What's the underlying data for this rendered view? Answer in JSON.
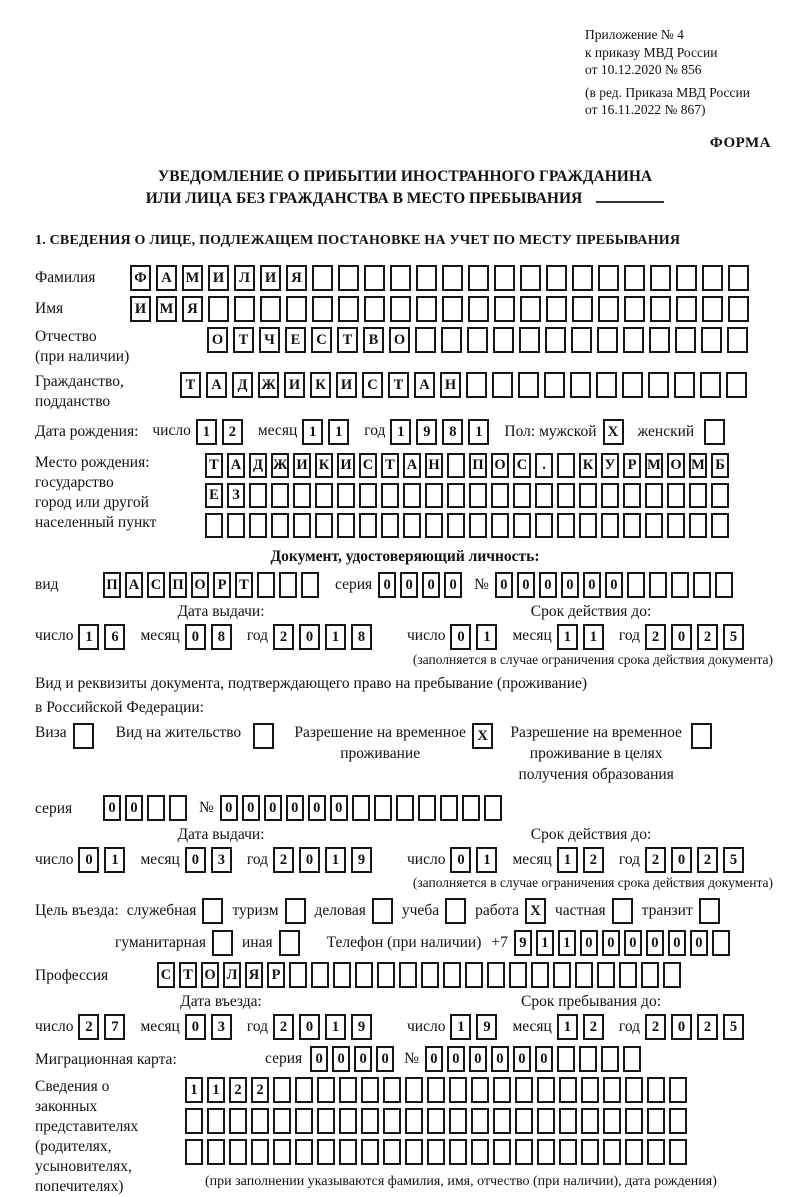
{
  "page": {
    "annex_lines": [
      "Приложение № 4",
      "к приказу МВД России",
      "от 10.12.2020 № 856"
    ],
    "annex_edit_lines": [
      "(в ред. Приказа МВД России",
      "от 16.11.2022 № 867)"
    ],
    "forma_label": "ФОРМА",
    "title_line1": "УВЕДОМЛЕНИЕ О ПРИБЫТИИ ИНОСТРАННОГО ГРАЖДАНИНА",
    "title_line2": "ИЛИ ЛИЦА БЕЗ ГРАЖДАНСТВА В МЕСТО ПРЕБЫВАНИЯ",
    "section1_heading": "1. СВЕДЕНИЯ О ЛИЦЕ, ПОДЛЕЖАЩЕМ ПОСТАНОВКЕ НА УЧЕТ ПО МЕСТУ ПРЕБЫВАНИЯ"
  },
  "labels": {
    "day": "число",
    "month": "месяц",
    "year": "год",
    "issue_date": "Дата выдачи:",
    "valid_until": "Срок действия до:",
    "entry_date": "Дата въезда:",
    "stay_until": "Срок пребывания до:",
    "series": "серия",
    "number": "№",
    "limit_note": "(заполняется в случае ограничения срока действия документа)"
  },
  "person": {
    "surname": {
      "label": "Фамилия",
      "boxes": {
        "chars": "ФАМИЛИЯ",
        "total": 24
      }
    },
    "given_name": {
      "label": "Имя",
      "boxes": {
        "chars": "ИМЯ",
        "total": 24
      }
    },
    "patronymic": {
      "label": "Отчество",
      "label2": "(при наличии)",
      "boxes": {
        "chars": "ОТЧЕСТВО",
        "total": 21
      }
    },
    "citizenship": {
      "label": "Гражданство,",
      "label2": "подданство",
      "boxes": {
        "chars": "ТАДЖИКИСТАН",
        "total": 22
      }
    },
    "birth_date": {
      "label": "Дата рождения:",
      "day": {
        "chars": "12",
        "total": 2
      },
      "month": {
        "chars": "11",
        "total": 2
      },
      "year": {
        "chars": "1981",
        "total": 4
      }
    },
    "sex": {
      "male_label": "Пол: мужской",
      "male": "X",
      "female_label": "женский",
      "female": ""
    },
    "birth_place": {
      "label_lines": [
        "Место рождения:",
        "государство",
        "город или другой",
        "населенный пункт"
      ],
      "row1": {
        "chars": "ТАДЖИКИСТАН ПОС. КУРМОМБ",
        "total": 24
      },
      "row2": {
        "chars": "ЕЗ",
        "total": 24
      },
      "row3": {
        "chars": "",
        "total": 24
      }
    }
  },
  "identity_doc": {
    "heading": "Документ, удостоверяющий личность:",
    "kind_label": "вид",
    "kind": {
      "chars": "ПАСПОРТ",
      "total": 10
    },
    "series": {
      "chars": "0000",
      "total": 4
    },
    "number": {
      "chars": "000000",
      "total": 11
    },
    "issue": {
      "day": {
        "chars": "16",
        "total": 2
      },
      "month": {
        "chars": "08",
        "total": 2
      },
      "year": {
        "chars": "2018",
        "total": 4
      }
    },
    "until": {
      "day": {
        "chars": "01",
        "total": 2
      },
      "month": {
        "chars": "11",
        "total": 2
      },
      "year": {
        "chars": "2025",
        "total": 4
      }
    }
  },
  "stay_doc": {
    "intro_line1": "Вид и реквизиты документа, подтверждающего право на пребывание (проживание)",
    "intro_line2": "в Российской Федерации:",
    "options": [
      {
        "label": "Виза",
        "value": ""
      },
      {
        "label": "Вид на жительство",
        "value": ""
      },
      {
        "label": "Разрешение на временное проживание",
        "value": "X"
      },
      {
        "label": "Разрешение на временное проживание в целях получения образования",
        "value": ""
      }
    ],
    "series": {
      "chars": "00",
      "total": 4
    },
    "number": {
      "chars": "000000",
      "total": 13
    },
    "issue": {
      "day": {
        "chars": "01",
        "total": 2
      },
      "month": {
        "chars": "03",
        "total": 2
      },
      "year": {
        "chars": "2019",
        "total": 4
      }
    },
    "until": {
      "day": {
        "chars": "01",
        "total": 2
      },
      "month": {
        "chars": "12",
        "total": 2
      },
      "year": {
        "chars": "2025",
        "total": 4
      }
    }
  },
  "visit": {
    "purpose_label": "Цель въезда:",
    "purpose_row1": [
      {
        "label": "служебная",
        "value": ""
      },
      {
        "label": "туризм",
        "value": ""
      },
      {
        "label": "деловая",
        "value": ""
      },
      {
        "label": "учеба",
        "value": ""
      },
      {
        "label": "работа",
        "value": "X"
      },
      {
        "label": "частная",
        "value": ""
      },
      {
        "label": "транзит",
        "value": ""
      }
    ],
    "purpose_row2": [
      {
        "label": "гуманитарная",
        "value": ""
      },
      {
        "label": "иная",
        "value": ""
      }
    ],
    "phone_label": "Телефон (при наличии)",
    "phone_prefix": "+7",
    "phone": {
      "chars": "911000000",
      "total": 10
    },
    "profession_label": "Профессия",
    "profession": {
      "chars": "СТОЛЯР",
      "total": 24
    },
    "entry": {
      "day": {
        "chars": "27",
        "total": 2
      },
      "month": {
        "chars": "03",
        "total": 2
      },
      "year": {
        "chars": "2019",
        "total": 4
      }
    },
    "stay_until": {
      "day": {
        "chars": "19",
        "total": 2
      },
      "month": {
        "chars": "12",
        "total": 2
      },
      "year": {
        "chars": "2025",
        "total": 4
      }
    }
  },
  "migration_card": {
    "label": "Миграционная карта:",
    "series": {
      "chars": "0000",
      "total": 4
    },
    "number": {
      "chars": "000000",
      "total": 10
    }
  },
  "representatives": {
    "label_lines": [
      "Сведения о",
      "законных",
      "представителях",
      "(родителях,",
      "усыновителях,",
      "попечителях)"
    ],
    "row1": {
      "chars": "1122",
      "total": 23
    },
    "row2": {
      "chars": "",
      "total": 23
    },
    "row3": {
      "chars": "",
      "total": 23
    },
    "note": "(при заполнении указываются фамилия, имя, отчество (при наличии), дата рождения)"
  }
}
